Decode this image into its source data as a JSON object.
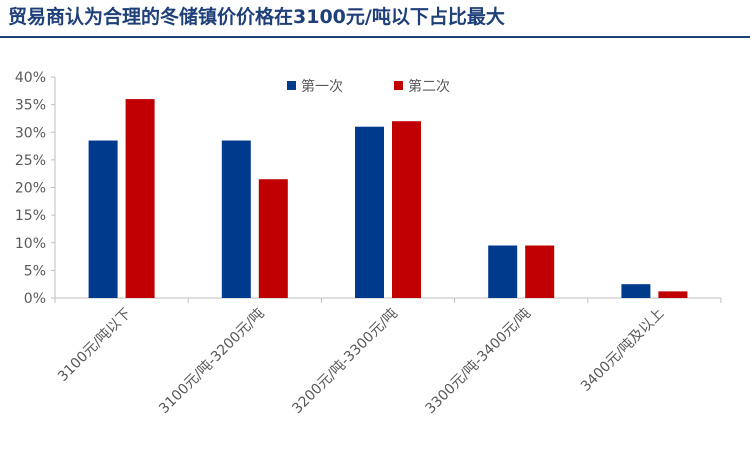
{
  "title": "贸易商认为合理的冬储镇价价格在3100元/吨以下占比最大",
  "colors": {
    "title": "#1f3f78",
    "series1": "#003a8c",
    "series2": "#c00000",
    "axis": "#bfbfbf",
    "text": "#595959"
  },
  "chart_data": {
    "type": "bar",
    "title": "",
    "xlabel": "",
    "ylabel": "",
    "categories": [
      "3100元/吨以下",
      "3100元/吨-3200元/吨",
      "3200元/吨-3300元/吨",
      "3300元/吨-3400元/吨",
      "3400元/吨及以上"
    ],
    "series": [
      {
        "name": "第一次",
        "values": [
          28.5,
          28.5,
          31.0,
          9.5,
          2.5
        ]
      },
      {
        "name": "第二次",
        "values": [
          36.0,
          21.5,
          32.0,
          9.5,
          1.2
        ]
      }
    ],
    "ylim": [
      0,
      40
    ],
    "ytick_step": 5,
    "ytick_labels": [
      "0%",
      "5%",
      "10%",
      "15%",
      "20%",
      "25%",
      "30%",
      "35%",
      "40%"
    ],
    "grid": false,
    "legend": "top-center"
  }
}
